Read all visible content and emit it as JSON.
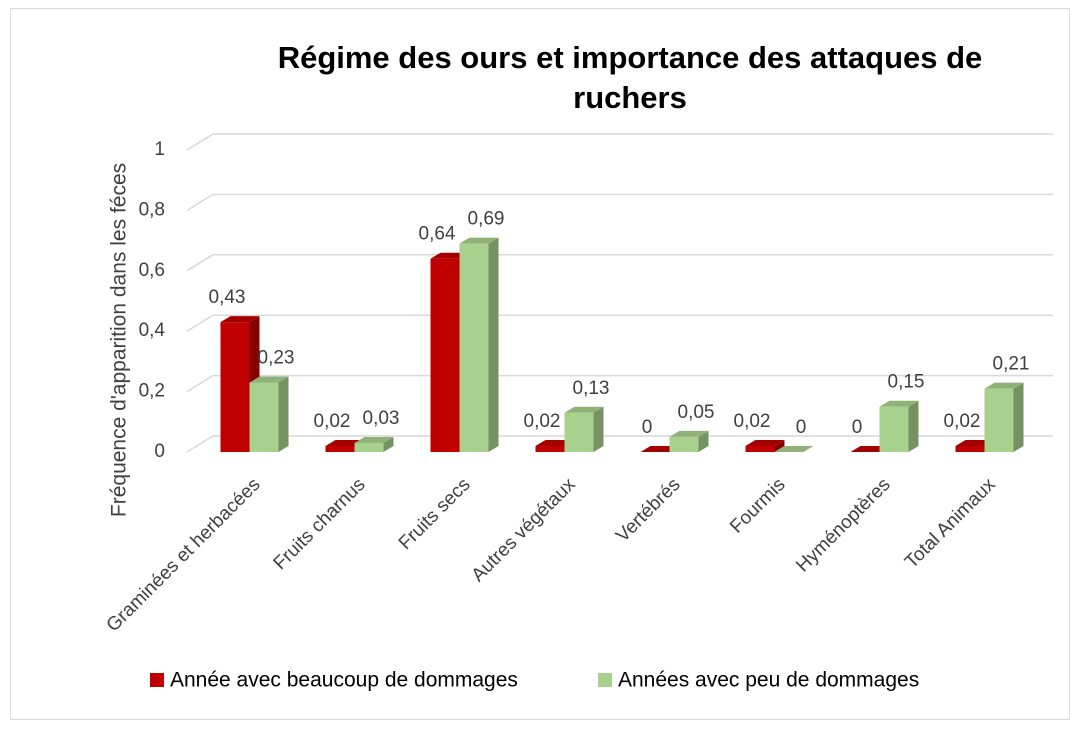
{
  "chart_data": {
    "type": "bar3d",
    "title": "Régime des ours et importance des  attaques de ruchers",
    "y_label": "Fréquence d'apparition dans les féces",
    "categories": [
      "Graminées et herbacées",
      "Fruits charnus",
      "Fruits secs",
      "Autres végétaux",
      "Vertébrés",
      "Fourmis",
      "Hyménoptères",
      "Total Animaux"
    ],
    "series": [
      {
        "name": "Année avec beaucoup de dommages",
        "color": "#c00000",
        "values": [
          0.43,
          0.02,
          0.64,
          0.02,
          0,
          0.02,
          0,
          0.02
        ],
        "value_labels": [
          "0,43",
          "0,02",
          "0,64",
          "0,02",
          "0",
          "0,02",
          "0",
          "0,02"
        ]
      },
      {
        "name": "Années avec peu de dommages",
        "color": "#a9d18e",
        "values": [
          0.23,
          0.03,
          0.69,
          0.13,
          0.05,
          0,
          0.15,
          0.21
        ],
        "value_labels": [
          "0,23",
          "0,03",
          "0,69",
          "0,13",
          "0,05",
          "0",
          "0,15",
          "0,21"
        ]
      }
    ],
    "ylim": [
      0,
      1
    ],
    "yticks": [
      0,
      {
        "value": 0.2,
        "label": "0,2"
      },
      {
        "value": 0.4,
        "label": "0,4"
      },
      {
        "value": 0.6,
        "label": "0,6"
      },
      {
        "value": 0.8,
        "label": "0,8"
      },
      1
    ],
    "grid": true,
    "legend": "bottom"
  }
}
